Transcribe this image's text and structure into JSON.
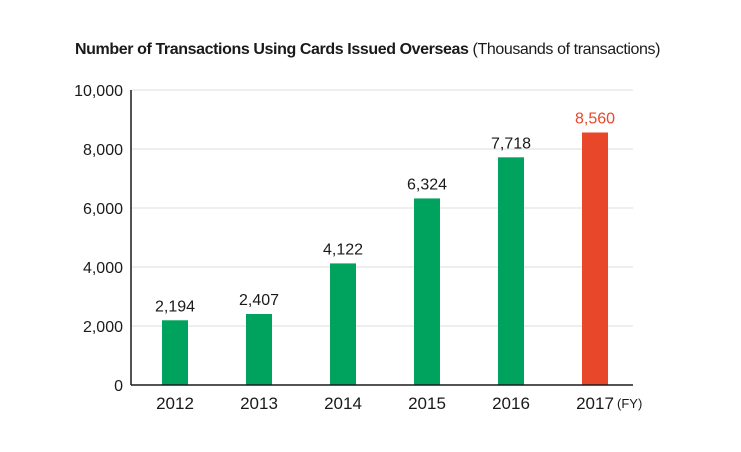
{
  "chart_data": {
    "type": "bar",
    "title": "Number of Transactions Using Cards Issued Overseas",
    "unit_label": "(Thousands of transactions)",
    "categories": [
      "2012",
      "2013",
      "2014",
      "2015",
      "2016",
      "2017"
    ],
    "values": [
      2194,
      2407,
      4122,
      6324,
      7718,
      8560
    ],
    "value_labels": [
      "2,194",
      "2,407",
      "4,122",
      "6,324",
      "7,718",
      "8,560"
    ],
    "yticks": [
      0,
      2000,
      4000,
      6000,
      8000,
      10000
    ],
    "ytick_labels": [
      "0",
      "2,000",
      "4,000",
      "6,000",
      "8,000",
      "10,000"
    ],
    "ylim": [
      0,
      10000
    ],
    "x_unit_label": "(FY)",
    "grid": true,
    "colors": {
      "bar": "#00a35e",
      "highlight_bar": "#e8472a",
      "highlight_label": "#e8472a",
      "label": "#1a1a1a",
      "grid": "#dddddd",
      "axis": "#1a1a1a"
    },
    "highlight_index": 5
  }
}
